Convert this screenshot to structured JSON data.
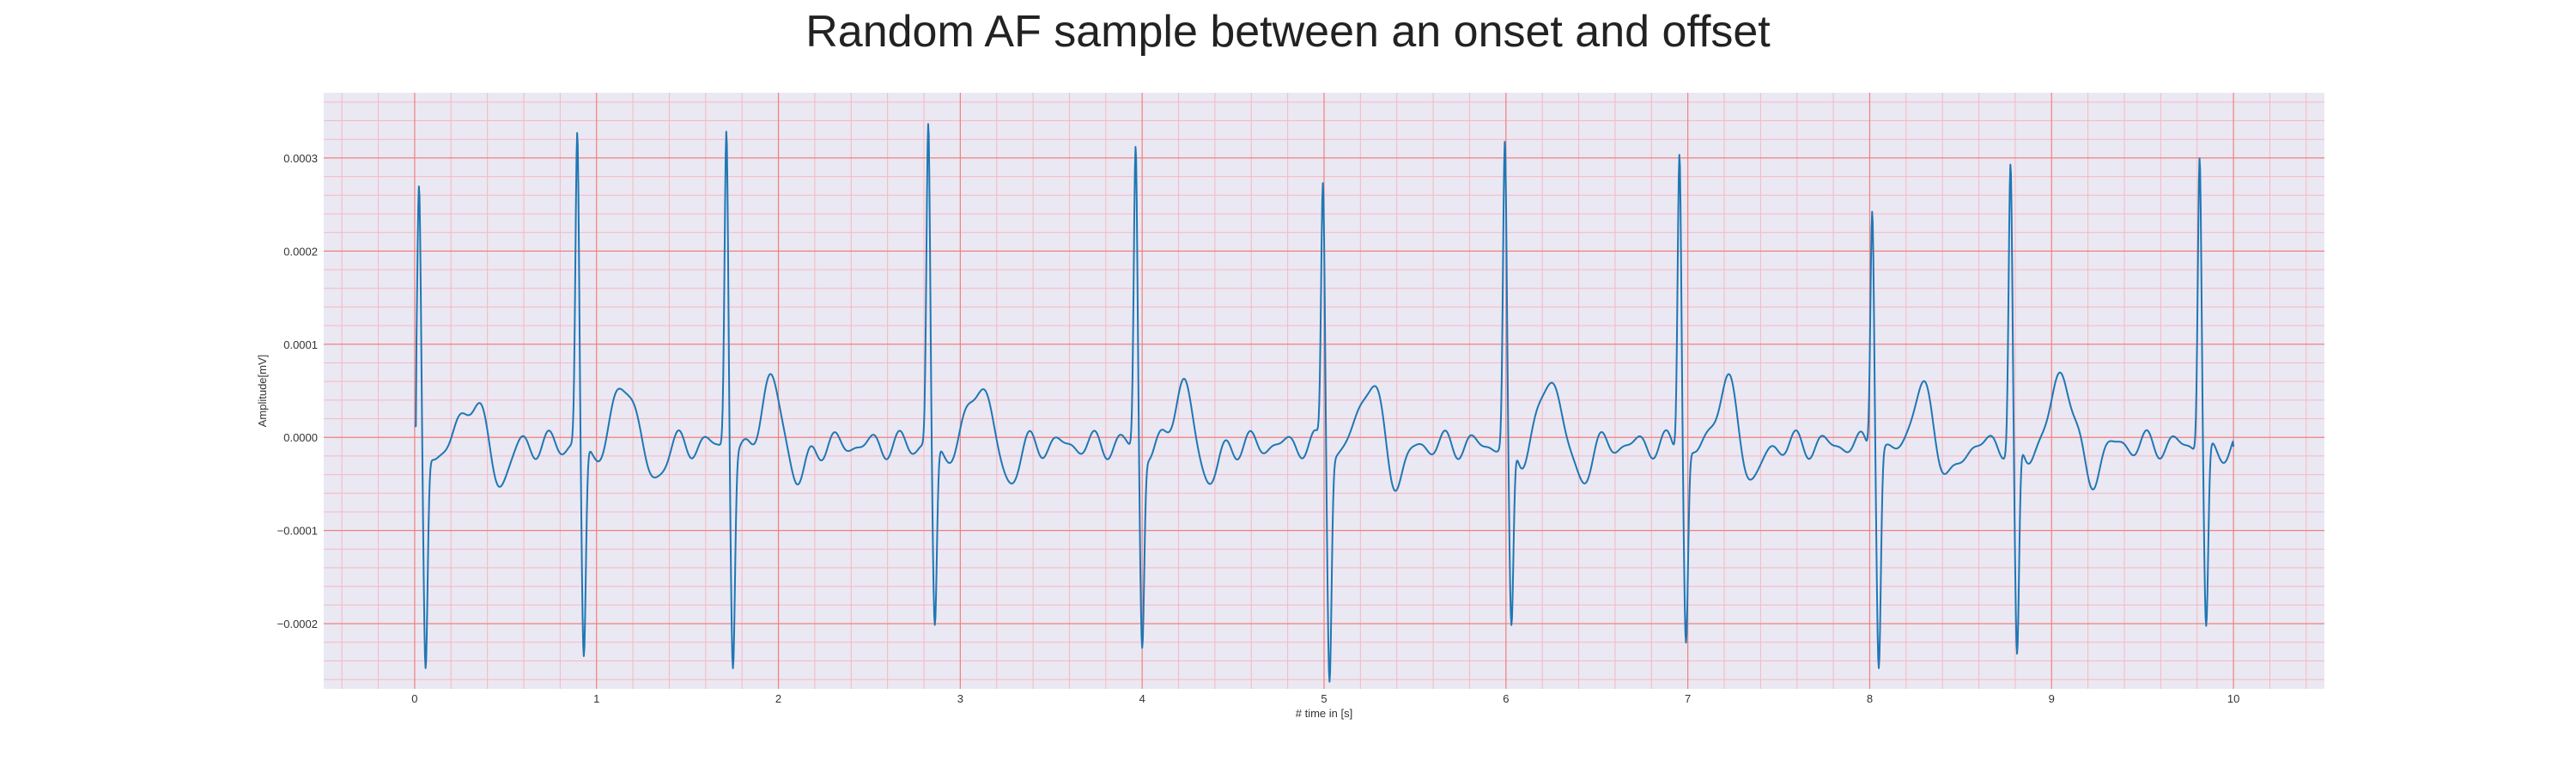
{
  "chart_data": {
    "type": "line",
    "title": "Random AF sample between an onset and offset",
    "xlabel": "# time in [s]",
    "ylabel": "Amplitude[mV]",
    "xlim": [
      -0.5,
      10.5
    ],
    "ylim": [
      -0.00027,
      0.00037
    ],
    "xticks": [
      0,
      1,
      2,
      3,
      4,
      5,
      6,
      7,
      8,
      9,
      10
    ],
    "xtick_labels": [
      "0",
      "1",
      "2",
      "3",
      "4",
      "5",
      "6",
      "7",
      "8",
      "9",
      "10"
    ],
    "yticks": [
      -0.0002,
      -0.0001,
      0.0,
      0.0001,
      0.0002,
      0.0003
    ],
    "ytick_labels": [
      "−0.0002",
      "−0.0001",
      "0.0000",
      "0.0001",
      "0.0002",
      "0.0003"
    ],
    "grid": true,
    "minor_grid": true,
    "colors": {
      "plot_background": "#eae8f2",
      "major_grid": "#f08080",
      "minor_grid": "#f5b8c4",
      "line": "#1f77b4"
    },
    "series": [
      {
        "name": "",
        "beats": [
          {
            "t": 0.03,
            "r": 0.000268,
            "s": -0.000238
          },
          {
            "t": 0.9,
            "r": 0.000335,
            "s": -0.000228
          },
          {
            "t": 1.72,
            "r": 0.000345,
            "s": -0.000228
          },
          {
            "t": 2.83,
            "r": 0.000345,
            "s": -0.000195
          },
          {
            "t": 3.97,
            "r": 0.000325,
            "s": -0.000208
          },
          {
            "t": 5.0,
            "r": 0.000285,
            "s": -0.000238
          },
          {
            "t": 6.0,
            "r": 0.000322,
            "s": -0.000202
          },
          {
            "t": 6.96,
            "r": 0.000325,
            "s": -0.000205
          },
          {
            "t": 8.02,
            "r": 0.000267,
            "s": -0.000228
          },
          {
            "t": 8.78,
            "r": 0.000303,
            "s": -0.000235
          },
          {
            "t": 9.82,
            "r": 0.000318,
            "s": -0.000195
          }
        ],
        "t_waves": [
          {
            "t": 0.34,
            "a": 5e-05
          },
          {
            "t": 1.18,
            "a": 6.8e-05
          },
          {
            "t": 1.98,
            "a": 6.5e-05
          },
          {
            "t": 3.13,
            "a": 6.8e-05
          },
          {
            "t": 4.24,
            "a": 6e-05
          },
          {
            "t": 5.27,
            "a": 6.8e-05
          },
          {
            "t": 6.27,
            "a": 7.2e-05
          },
          {
            "t": 7.23,
            "a": 6.5e-05
          },
          {
            "t": 8.31,
            "a": 5.8e-05
          },
          {
            "t": 9.08,
            "a": 7.8e-05
          }
        ],
        "t_start": 0.0,
        "t_end": 10.0,
        "start_value": 1.2e-05,
        "end_value": -1e-05
      }
    ]
  }
}
